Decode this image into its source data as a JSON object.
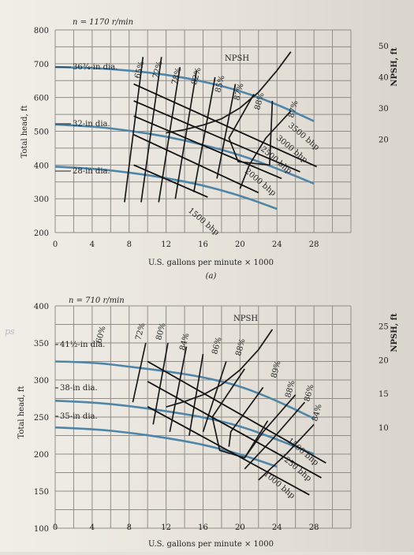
{
  "chart_data": [
    {
      "type": "line",
      "speed_label": "n = 1170 r/min",
      "sublabel": "(a)",
      "xlabel": "U.S. gallons per minute × 1000",
      "ylabel": "Total head, ft",
      "y2label": "NPSH, ft",
      "xlim": [
        0,
        32
      ],
      "ylim": [
        200,
        800
      ],
      "y2lim": [
        -10,
        55
      ],
      "x_ticks": [
        "0",
        "4",
        "8",
        "12",
        "16",
        "20",
        "24",
        "28"
      ],
      "y_ticks": [
        "200",
        "300",
        "400",
        "500",
        "600",
        "700",
        "800"
      ],
      "y2_ticks": [
        "20",
        "30",
        "40",
        "50"
      ],
      "impeller_series": [
        {
          "name": "36 3/4-in dia.",
          "label": "36¾-in dia.",
          "x": [
            0,
            4,
            8,
            12,
            16,
            20,
            24,
            28
          ],
          "y": [
            690,
            688,
            680,
            668,
            648,
            620,
            580,
            530
          ]
        },
        {
          "name": "32-in dia.",
          "label": "32-in dia.",
          "x": [
            0,
            4,
            8,
            12,
            16,
            20,
            24,
            28
          ],
          "y": [
            520,
            515,
            502,
            485,
            460,
            430,
            390,
            345
          ]
        },
        {
          "name": "28-in dia.",
          "label": "28-in dia.",
          "x": [
            0,
            4,
            8,
            12,
            16,
            20,
            24
          ],
          "y": [
            395,
            390,
            378,
            362,
            340,
            310,
            270
          ]
        }
      ],
      "npsh": {
        "label": "NPSH",
        "x": [
          12,
          14,
          16,
          18,
          20,
          22,
          24,
          25.5
        ],
        "y": [
          22,
          23,
          24.5,
          26.5,
          30,
          35,
          42,
          48
        ]
      },
      "efficiency_labels": [
        "65%",
        "72%",
        "78%",
        "82%",
        "85%",
        "87%",
        "88%",
        "87%"
      ],
      "efficiency_curves": [
        {
          "label": "65%",
          "points": [
            [
              9.5,
              720
            ],
            [
              7.5,
              290
            ]
          ]
        },
        {
          "label": "72%",
          "points": [
            [
              11.5,
              720
            ],
            [
              9.3,
              290
            ]
          ]
        },
        {
          "label": "78%",
          "points": [
            [
              13.5,
              690
            ],
            [
              11.2,
              290
            ]
          ]
        },
        {
          "label": "82%",
          "points": [
            [
              15.3,
              680
            ],
            [
              13.0,
              300
            ]
          ]
        },
        {
          "label": "85%",
          "points": [
            [
              17.3,
              660
            ],
            [
              15.0,
              320
            ]
          ]
        },
        {
          "label": "87%",
          "points": [
            [
              19.5,
              640
            ],
            [
              17.5,
              360
            ]
          ]
        },
        {
          "label": "88%",
          "points": [
            [
              21.5,
              610
            ],
            [
              18.8,
              480
            ],
            [
              19.8,
              410
            ],
            [
              23.2,
              400
            ],
            [
              23.5,
              590
            ]
          ]
        },
        {
          "label": "87%",
          "points": [
            [
              25.5,
              560
            ],
            [
              22.8,
              480
            ],
            [
              21.0,
              400
            ],
            [
              20.0,
              330
            ]
          ]
        }
      ],
      "power_lines": [
        {
          "label": "3500 bhp",
          "points": [
            [
              8.5,
              640
            ],
            [
              28.3,
              395
            ]
          ]
        },
        {
          "label": "3000 bhp",
          "points": [
            [
              8.5,
              590
            ],
            [
              26.5,
              380
            ]
          ]
        },
        {
          "label": "2500 bhp",
          "points": [
            [
              8.5,
              545
            ],
            [
              24.5,
              360
            ]
          ]
        },
        {
          "label": "2000 bhp",
          "points": [
            [
              8.5,
              490
            ],
            [
              22.0,
              318
            ]
          ]
        },
        {
          "label": "1500 bhp",
          "points": [
            [
              8.5,
              400
            ],
            [
              16.5,
              305
            ]
          ]
        }
      ]
    },
    {
      "type": "line",
      "speed_label": "n = 710 r/min",
      "xlabel": "U.S. gallons per minute × 1000",
      "ylabel": "Total head, ft",
      "y2label": "NPSH, ft",
      "xlim": [
        0,
        32
      ],
      "ylim": [
        100,
        400
      ],
      "y2lim": [
        -5,
        28
      ],
      "x_ticks": [
        "0",
        "4",
        "8",
        "12",
        "16",
        "20",
        "24",
        "28"
      ],
      "y_ticks": [
        "100",
        "150",
        "200",
        "250",
        "300",
        "350",
        "400"
      ],
      "y2_ticks": [
        "10",
        "15",
        "20",
        "25"
      ],
      "impeller_series": [
        {
          "name": "41 1/2-in dia.",
          "label": "41½-in dia.",
          "x": [
            0,
            4,
            8,
            12,
            16,
            20,
            24,
            28
          ],
          "y": [
            325,
            324,
            318,
            312,
            304,
            292,
            272,
            248
          ]
        },
        {
          "name": "38-in dia.",
          "label": "38-in dia.",
          "x": [
            0,
            4,
            8,
            12,
            16,
            20,
            24,
            28
          ],
          "y": [
            272,
            270,
            265,
            258,
            250,
            238,
            220,
            200
          ]
        },
        {
          "name": "35-in dia.",
          "label": "35-in dia.",
          "x": [
            0,
            4,
            8,
            12,
            16,
            20,
            24
          ],
          "y": [
            236,
            234,
            229,
            222,
            213,
            200,
            183
          ]
        }
      ],
      "npsh": {
        "label": "NPSH",
        "x": [
          12,
          14,
          16,
          18,
          20,
          22,
          23.5
        ],
        "y": [
          13,
          13.8,
          14.8,
          16.3,
          18.5,
          21.5,
          24.5
        ]
      },
      "efficiency_labels": [
        "60%",
        "72%",
        "80%",
        "84%",
        "86%",
        "88%",
        "89%",
        "88%",
        "86%",
        "84%"
      ],
      "efficiency_curves": [
        {
          "label": "60%",
          "points": [
            [
              9.8,
              350
            ],
            [
              8.4,
              270
            ]
          ]
        },
        {
          "label": "72%",
          "points": [
            [
              12.2,
              350
            ],
            [
              10.6,
              240
            ]
          ]
        },
        {
          "label": "80%",
          "points": [
            [
              14.2,
              345
            ],
            [
              12.4,
              230
            ]
          ]
        },
        {
          "label": "84%",
          "points": [
            [
              16.0,
              335
            ],
            [
              14.5,
              225
            ]
          ]
        },
        {
          "label": "86%",
          "points": [
            [
              18.5,
              325
            ],
            [
              16.0,
              230
            ]
          ]
        },
        {
          "label": "88%",
          "points": [
            [
              20.5,
              315
            ],
            [
              17.0,
              250
            ],
            [
              17.8,
              205
            ],
            [
              20.5,
              195
            ],
            [
              23.0,
              245
            ]
          ]
        },
        {
          "label": "89%",
          "points": [
            [
              22.5,
              290
            ],
            [
              19.0,
              230
            ],
            [
              18.8,
              210
            ]
          ]
        },
        {
          "label": "88%",
          "points": [
            [
              26.0,
              280
            ],
            [
              22.5,
              230
            ],
            [
              20.5,
              195
            ]
          ]
        },
        {
          "label": "86%",
          "points": [
            [
              27.0,
              270
            ],
            [
              23.5,
              220
            ],
            [
              20.5,
              180
            ]
          ]
        },
        {
          "label": "84%",
          "points": [
            [
              28.0,
              240
            ],
            [
              25.0,
              200
            ],
            [
              22.0,
              165
            ]
          ]
        }
      ],
      "power_lines": [
        {
          "label": "1500 bhp",
          "points": [
            [
              10.0,
              325
            ],
            [
              29.3,
              188
            ]
          ]
        },
        {
          "label": "1250 bhp",
          "points": [
            [
              10.0,
              298
            ],
            [
              28.8,
              168
            ]
          ]
        },
        {
          "label": "1000 bhp",
          "points": [
            [
              10.0,
              264
            ],
            [
              27.5,
              145
            ]
          ]
        }
      ]
    }
  ],
  "margin_note": "ps"
}
